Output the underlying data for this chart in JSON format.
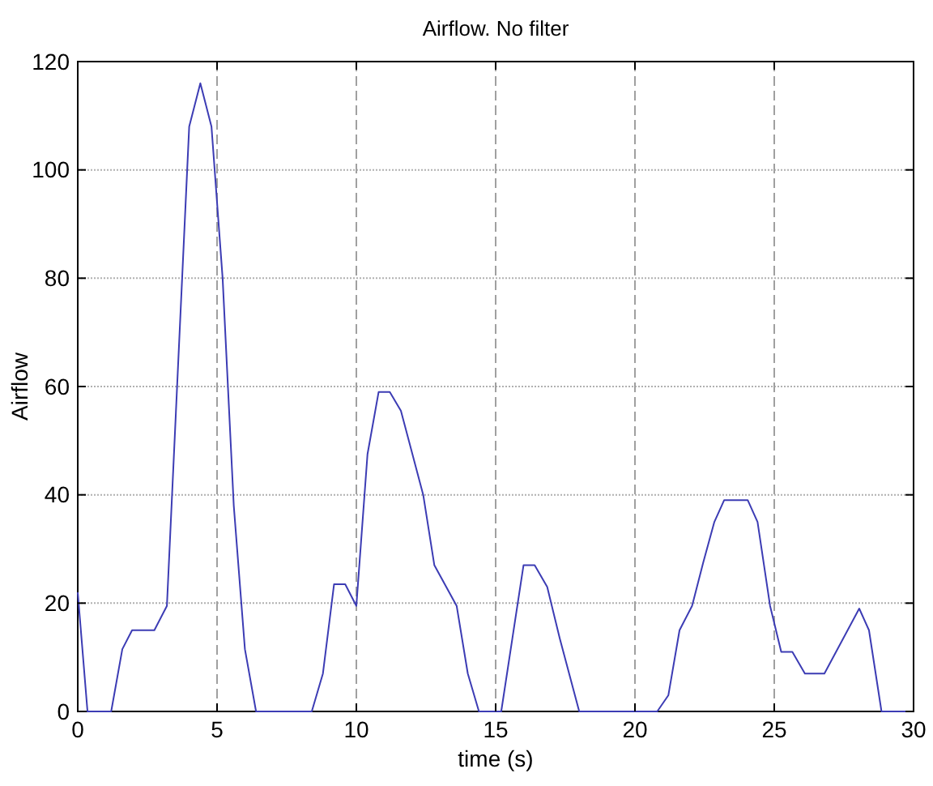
{
  "chart_data": {
    "type": "line",
    "title": "Airflow. No filter",
    "xlabel": "time (s)",
    "ylabel": "Airflow",
    "xlim": [
      0,
      30
    ],
    "xticks": [
      0,
      5,
      10,
      15,
      20,
      25,
      30
    ],
    "ylim": [
      0,
      120
    ],
    "yticks": [
      0,
      20,
      40,
      60,
      80,
      100,
      120
    ],
    "grid": true,
    "series": [
      {
        "color": "#3c3cb4",
        "x": [
          0,
          0.35,
          1.2,
          1.6,
          1.95,
          2.75,
          3.2,
          4.0,
          4.4,
          4.8,
          5.2,
          5.6,
          6.0,
          6.4,
          8.4,
          8.8,
          9.2,
          9.6,
          10.0,
          10.4,
          10.8,
          11.2,
          11.6,
          12.4,
          12.8,
          13.6,
          14.0,
          14.4,
          15.2,
          15.6,
          16.0,
          16.4,
          16.85,
          17.3,
          18.0,
          20.8,
          21.2,
          21.6,
          22.05,
          22.45,
          22.85,
          23.2,
          24.05,
          24.4,
          24.85,
          25.25,
          25.65,
          26.1,
          26.8,
          28.05,
          28.4,
          28.85,
          30
        ],
        "values": [
          22,
          0,
          0,
          11.5,
          15,
          15,
          19.5,
          108,
          116,
          108,
          80,
          38,
          11.5,
          0,
          0,
          7,
          23.5,
          23.5,
          19.5,
          47.5,
          59,
          59,
          55.5,
          40,
          27,
          19.5,
          7,
          0,
          0,
          13.5,
          27,
          27,
          23,
          13.5,
          0,
          0,
          3,
          15,
          19.5,
          27.5,
          35,
          39,
          39,
          35,
          19.5,
          11,
          11,
          7,
          7,
          19,
          15,
          0,
          0
        ]
      }
    ]
  }
}
